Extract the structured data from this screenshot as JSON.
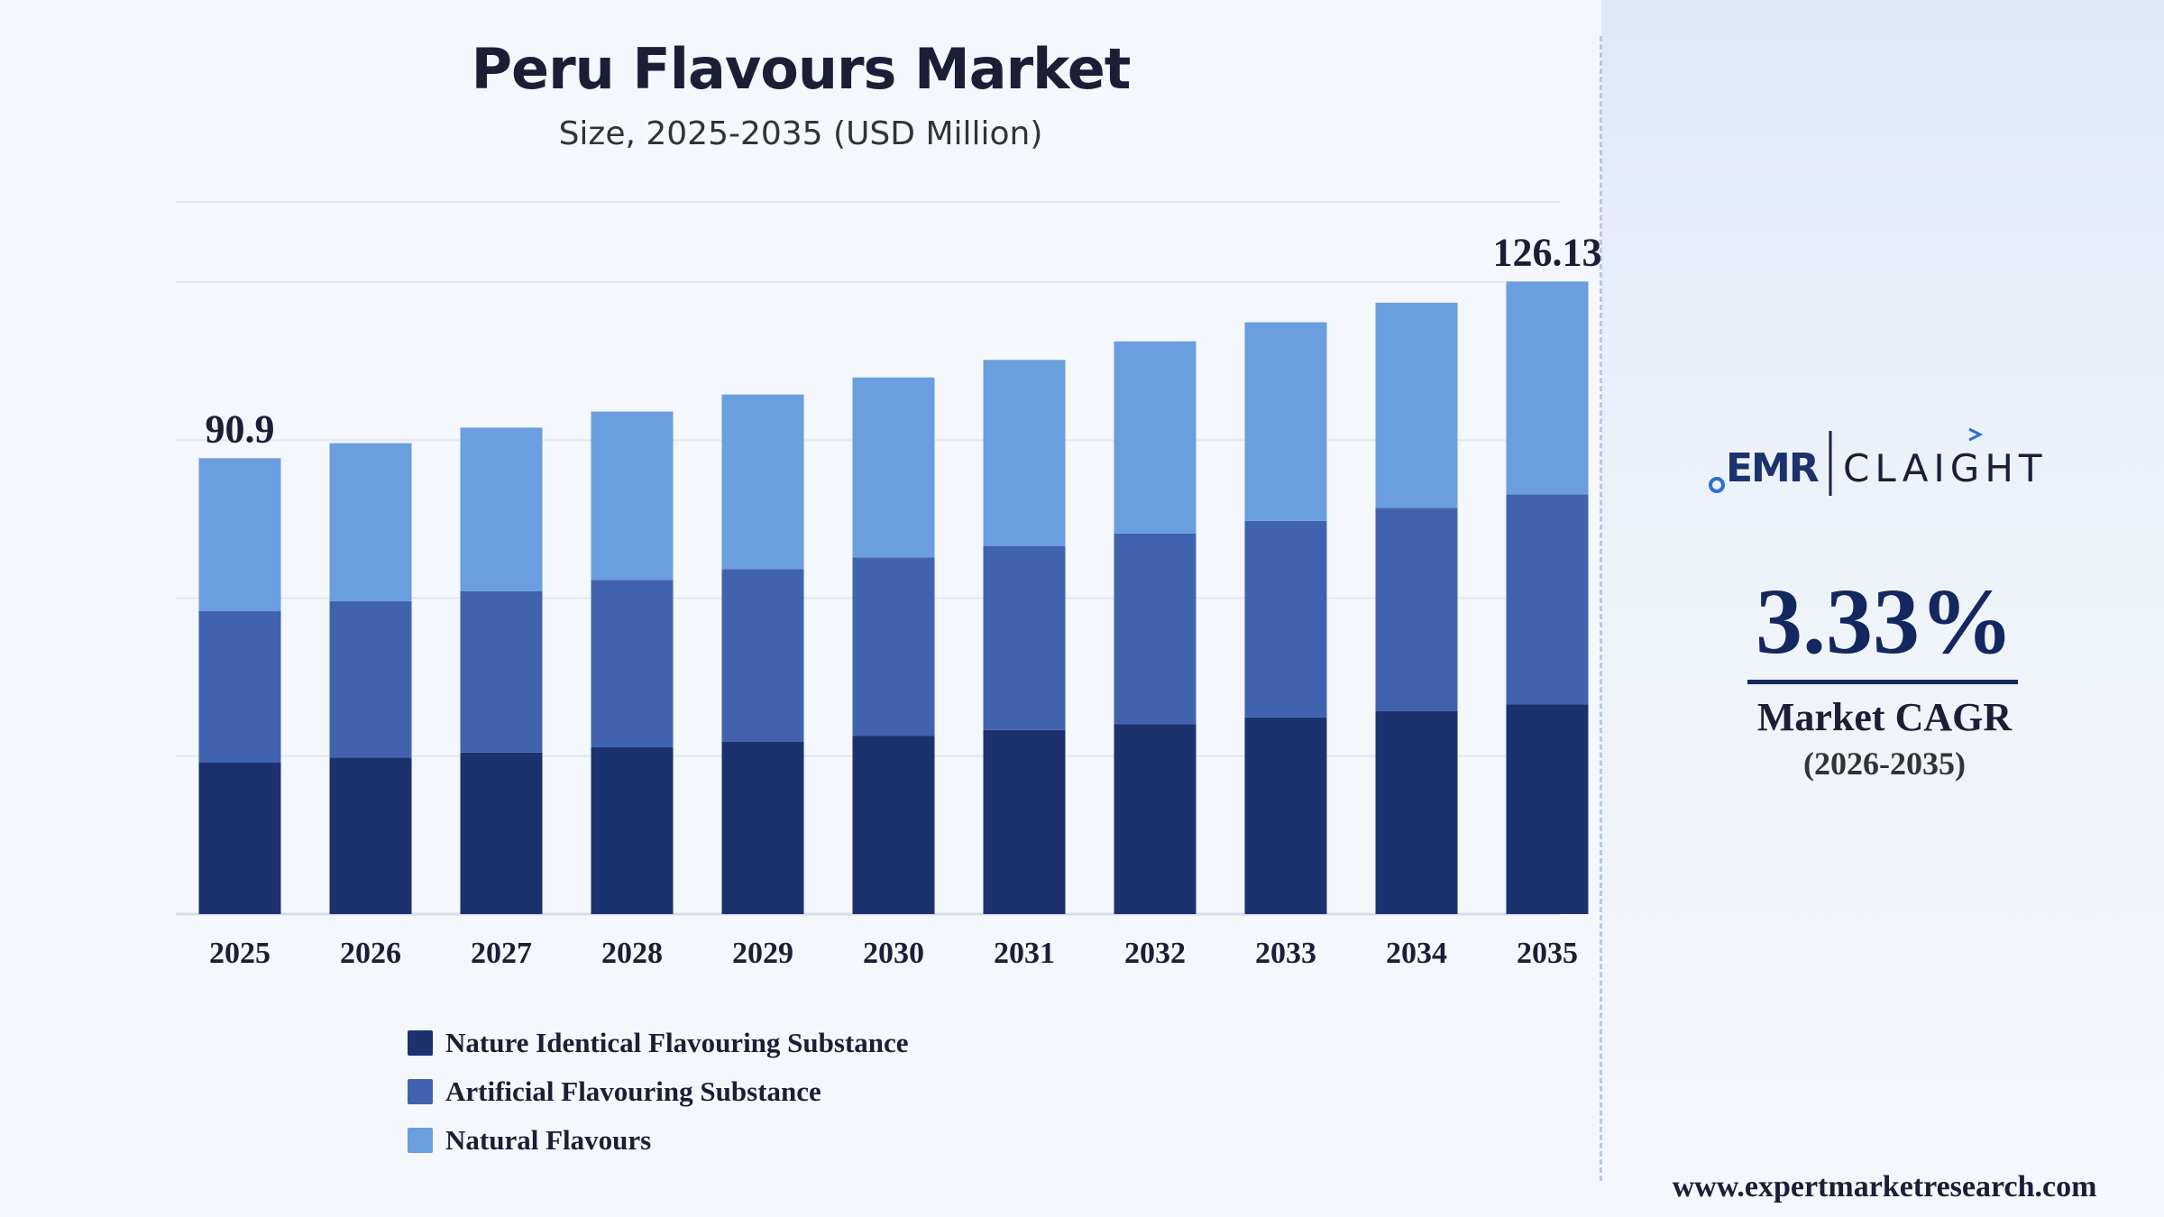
{
  "chart_data": {
    "type": "bar",
    "stacked": true,
    "title": "Peru Flavours Market",
    "subtitle": "Size, 2025-2035 (USD Million)",
    "categories": [
      "2025",
      "2026",
      "2027",
      "2028",
      "2029",
      "2030",
      "2031",
      "2032",
      "2033",
      "2034",
      "2035"
    ],
    "series": [
      {
        "name": "Nature Identical Flavouring Substance",
        "color": "#1b326e",
        "values": [
          30.2,
          31.2,
          32.2,
          33.3,
          34.4,
          35.5,
          36.7,
          37.9,
          39.2,
          40.5,
          41.8
        ]
      },
      {
        "name": "Artificial Flavouring Substance",
        "color": "#4163af",
        "values": [
          30.2,
          31.2,
          32.2,
          33.3,
          34.4,
          35.6,
          36.7,
          38.0,
          39.2,
          40.5,
          41.9
        ]
      },
      {
        "name": "Natural Flavours",
        "color": "#6a9ede",
        "values": [
          30.5,
          31.5,
          32.6,
          33.6,
          34.8,
          35.9,
          37.1,
          38.3,
          39.6,
          40.9,
          42.43
        ]
      }
    ],
    "data_labels": [
      {
        "category": "2025",
        "text": "90.9"
      },
      {
        "category": "2035",
        "text": "126.13"
      }
    ],
    "ylim": [
      0,
      142
    ],
    "grid": true,
    "legend_position": "bottom-left"
  },
  "side_panel": {
    "logo_left": "EMR",
    "logo_right": "CLAIGHT",
    "cagr_value": "3.33%",
    "cagr_label": "Market CAGR",
    "cagr_period": "(2026-2035)",
    "website": "www.expertmarketresearch.com"
  }
}
